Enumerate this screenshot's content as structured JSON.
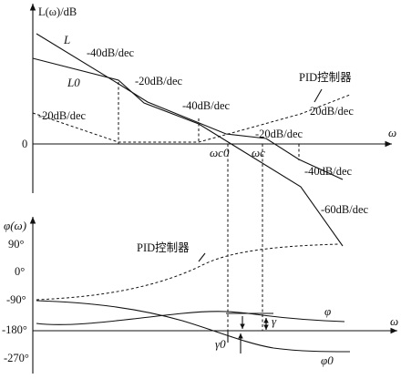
{
  "magnitude_plot": {
    "y_axis_label": "L(ω)/dB",
    "x_axis_label": "ω",
    "zero_label": "0",
    "curve_L_label": "L",
    "curve_L0_label": "L0",
    "slope_labels": [
      "-40dB/dec",
      "-20dB/dec",
      "-40dB/dec",
      "-20dB/dec",
      "-40dB/dec",
      "-60dB/dec",
      "-20dB/dec",
      "20dB/dec"
    ],
    "pid_label": "PID控制器",
    "crossover_c0": "ωc0",
    "crossover_c": "ωc"
  },
  "phase_plot": {
    "y_axis_label": "φ(ω)",
    "x_axis_label": "ω",
    "tick_labels": [
      "90°",
      "0°",
      "-90°",
      "-180°",
      "-270°"
    ],
    "pid_label": "PID控制器",
    "phi_label": "φ",
    "phi0_label": "φ0",
    "gamma_label": "γ",
    "gamma0_label": "γ0"
  }
}
